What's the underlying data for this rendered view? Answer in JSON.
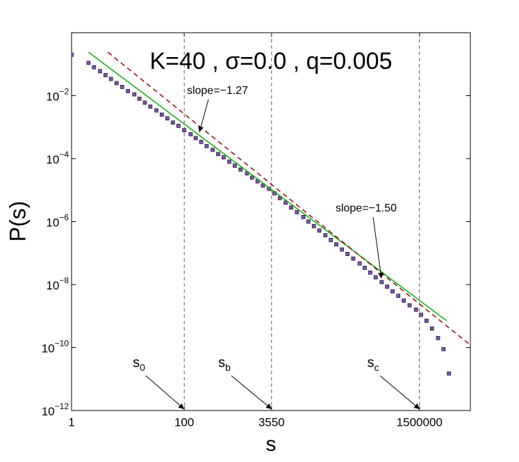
{
  "chart_data": {
    "type": "scatter",
    "title": "K=40 , σ=0.0 , q=0.005",
    "xlabel": "s",
    "ylabel": "P(s)",
    "xscale": "log",
    "yscale": "log",
    "xlim": [
      1,
      12000000
    ],
    "ylim": [
      1e-12,
      1
    ],
    "xticks": [
      1,
      100,
      3550,
      1500000
    ],
    "yticks": [
      {
        "value": 0.01,
        "label": "10−2"
      },
      {
        "value": 0.0001,
        "label": "10−4"
      },
      {
        "value": 1e-06,
        "label": "10−6"
      },
      {
        "value": 1e-08,
        "label": "10−8"
      },
      {
        "value": 1e-10,
        "label": "10−10"
      },
      {
        "value": 1e-12,
        "label": "10−12"
      }
    ],
    "vlines": [
      100,
      3550,
      1500000
    ],
    "series": [
      {
        "type": "scatter",
        "color": "#7a5aa0",
        "x": [
          1,
          2,
          2.5,
          3.2,
          4,
          5,
          6.3,
          7.9,
          10,
          13,
          16,
          20,
          25,
          32,
          40,
          50,
          63,
          79,
          100,
          130,
          160,
          200,
          250,
          320,
          400,
          500,
          630,
          790,
          1000,
          1300,
          1600,
          2000,
          2500,
          3200,
          4000,
          5000,
          6300,
          7900,
          10000,
          13000,
          16000,
          20000,
          25000,
          32000,
          40000,
          50000,
          63000,
          79000,
          100000,
          130000,
          160000,
          200000,
          250000,
          320000,
          400000,
          500000,
          630000,
          790000,
          1000000,
          1300000,
          1600000,
          2000000,
          2500000,
          3200000,
          4000000,
          5000000
        ],
        "values": [
          0.2,
          0.11,
          0.08,
          0.06,
          0.045,
          0.034,
          0.025,
          0.019,
          0.014,
          0.011,
          0.008,
          0.006,
          0.0045,
          0.0034,
          0.0025,
          0.0019,
          0.0014,
          0.0011,
          0.0008,
          0.0006,
          0.00045,
          0.00034,
          0.00025,
          0.00019,
          0.00014,
          0.00011,
          8e-05,
          6e-05,
          4.5e-05,
          3.4e-05,
          2.5e-05,
          1.9e-05,
          1.4e-05,
          1.1e-05,
          7.9e-06,
          5.6e-06,
          4e-06,
          2.8e-06,
          2e-06,
          1.4e-06,
          1e-06,
          7.2e-07,
          5.2e-07,
          3.7e-07,
          2.6e-07,
          1.9e-07,
          1.3e-07,
          9.4e-08,
          6.7e-08,
          4.7e-08,
          3.4e-08,
          2.4e-08,
          1.7e-08,
          1.2e-08,
          8.6e-09,
          6.1e-09,
          4.4e-09,
          3.1e-09,
          2.2e-09,
          1.6e-09,
          1.1e-09,
          7.1e-10,
          4e-10,
          2e-10,
          8.9e-11,
          1.5e-11
        ]
      },
      {
        "type": "line",
        "color": "#22aa22",
        "dash": false,
        "x": [
          2,
          4500000
        ],
        "values": [
          0.24,
          7.2e-10
        ]
      },
      {
        "type": "line",
        "color": "#8b1a1a",
        "dash": true,
        "x": [
          4.4,
          12000000
        ],
        "values": [
          0.24,
          1.2e-10
        ]
      }
    ],
    "annotations": [
      {
        "text": "slope=−1.27"
      },
      {
        "text": "slope=−1.50"
      },
      {
        "text": "s0"
      },
      {
        "text": "sb"
      },
      {
        "text": "sc"
      }
    ]
  }
}
